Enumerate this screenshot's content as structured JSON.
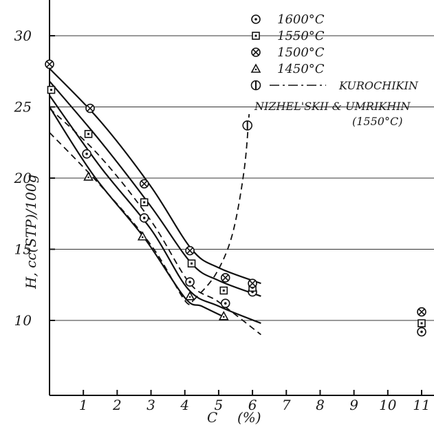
{
  "chart_data": {
    "type": "line",
    "title": "",
    "xlabel": "C",
    "xunit": "(%)",
    "ylabel": "H, cc(STP)/100g",
    "xlim": [
      0,
      12
    ],
    "ylim": [
      5,
      32
    ],
    "xticks": [
      "1",
      "2",
      "3",
      "4",
      "5",
      "6",
      "7",
      "8",
      "9",
      "10",
      "11"
    ],
    "yticks": [
      "10",
      "15",
      "20",
      "25",
      "30"
    ],
    "grid": true,
    "legend_position": "top-right",
    "legend": [
      {
        "marker": "dot-circle",
        "label": "1600°C"
      },
      {
        "marker": "square",
        "label": "1550°C"
      },
      {
        "marker": "cross-circle",
        "label": "1500°C"
      },
      {
        "marker": "triangle",
        "label": "1450°C"
      },
      {
        "marker": "bar-circle",
        "label": "KUROCHIKIN",
        "line": "dash-dot"
      }
    ],
    "legend_extra": [
      "NIZHEL'SKII & UMRIKHIN",
      "(1550°C)"
    ],
    "series": [
      {
        "label_ref": 0,
        "marker": "dot-circle",
        "points": [
          [
            1.1,
            21.7
          ],
          [
            2.8,
            17.2
          ],
          [
            4.15,
            12.7
          ],
          [
            5.2,
            11.2
          ],
          [
            6.0,
            12.0
          ],
          [
            11.0,
            9.2
          ]
        ]
      },
      {
        "label_ref": 1,
        "marker": "square",
        "points": [
          [
            0.05,
            26.2
          ],
          [
            1.15,
            23.1
          ],
          [
            2.8,
            18.3
          ],
          [
            4.2,
            14.0
          ],
          [
            5.15,
            12.1
          ],
          [
            6.0,
            12.3
          ],
          [
            11.0,
            9.8
          ]
        ]
      },
      {
        "label_ref": 2,
        "marker": "cross-circle",
        "points": [
          [
            0.0,
            28.0
          ],
          [
            1.2,
            24.9
          ],
          [
            2.8,
            19.6
          ],
          [
            4.15,
            14.9
          ],
          [
            5.2,
            13.0
          ],
          [
            6.0,
            12.6
          ],
          [
            11.0,
            10.6
          ]
        ]
      },
      {
        "label_ref": 3,
        "marker": "triangle",
        "points": [
          [
            1.15,
            20.1
          ],
          [
            2.75,
            15.9
          ],
          [
            4.15,
            11.7
          ],
          [
            5.15,
            10.3
          ]
        ]
      },
      {
        "label_ref": 4,
        "marker": "bar-circle",
        "points": [
          [
            5.85,
            23.7
          ]
        ]
      }
    ],
    "curves": [
      {
        "style": "solid",
        "points": [
          [
            0.0,
            27.7
          ],
          [
            1.5,
            24.0
          ],
          [
            3.0,
            19.4
          ],
          [
            4.2,
            15.0
          ],
          [
            5.0,
            13.7
          ],
          [
            6.25,
            12.6
          ]
        ]
      },
      {
        "style": "solid",
        "points": [
          [
            0.0,
            26.8
          ],
          [
            1.5,
            22.6
          ],
          [
            3.0,
            18.0
          ],
          [
            4.2,
            14.0
          ],
          [
            5.0,
            12.8
          ],
          [
            6.25,
            11.7
          ]
        ]
      },
      {
        "style": "solid",
        "points": [
          [
            0.0,
            25.8
          ],
          [
            1.5,
            20.8
          ],
          [
            3.0,
            16.4
          ],
          [
            4.1,
            12.2
          ],
          [
            5.0,
            11.0
          ],
          [
            6.25,
            9.8
          ]
        ]
      },
      {
        "style": "solid",
        "points": [
          [
            0.0,
            25.0
          ],
          [
            1.3,
            20.2
          ],
          [
            2.8,
            15.8
          ],
          [
            4.0,
            11.6
          ],
          [
            4.5,
            11.0
          ],
          [
            5.2,
            10.2
          ]
        ]
      },
      {
        "style": "dashed",
        "points": [
          [
            0.0,
            24.9
          ],
          [
            1.5,
            21.5
          ],
          [
            3.0,
            17.0
          ],
          [
            4.15,
            12.6
          ],
          [
            5.0,
            11.3
          ],
          [
            6.25,
            9.0
          ]
        ]
      },
      {
        "style": "dashed",
        "points": [
          [
            0.0,
            23.2
          ],
          [
            1.5,
            19.5
          ],
          [
            3.0,
            15.3
          ],
          [
            4.0,
            11.4
          ],
          [
            4.25,
            11.4
          ]
        ]
      },
      {
        "style": "dashed",
        "points": [
          [
            4.25,
            11.4
          ],
          [
            4.9,
            13.2
          ],
          [
            5.4,
            16.0
          ],
          [
            5.75,
            20.5
          ],
          [
            5.9,
            24.5
          ]
        ]
      }
    ]
  }
}
